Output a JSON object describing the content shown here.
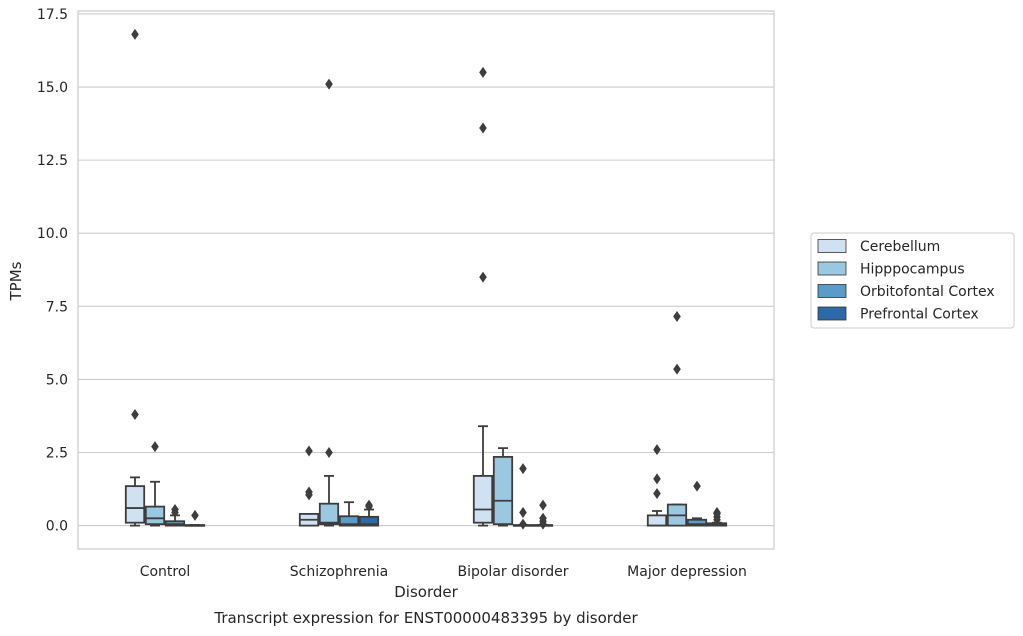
{
  "chart_data": {
    "type": "box",
    "xlabel": "Disorder",
    "ylabel": "TPMs",
    "caption": "Transcript expression for ENST00000483395 by disorder",
    "ylim": [
      -0.8,
      17.6
    ],
    "yticks": [
      "0.0",
      "2.5",
      "5.0",
      "7.5",
      "10.0",
      "12.5",
      "15.0",
      "17.5"
    ],
    "grid": "horizontal",
    "legend_position": "right",
    "categories": [
      "Control",
      "Schizophrenia",
      "Bipolar disorder",
      "Major depression"
    ],
    "series": [
      {
        "name": "Cerebellum",
        "color": "#d0e1f2",
        "boxes": [
          {
            "whislo": 0.0,
            "q1": 0.1,
            "med": 0.6,
            "q3": 1.35,
            "whishi": 1.65,
            "fliers": [
              3.8,
              16.8
            ]
          },
          {
            "whislo": 0.0,
            "q1": 0.0,
            "med": 0.2,
            "q3": 0.4,
            "whishi": 0.4,
            "fliers": [
              1.05,
              1.15,
              2.55
            ]
          },
          {
            "whislo": 0.0,
            "q1": 0.1,
            "med": 0.55,
            "q3": 1.7,
            "whishi": 3.4,
            "fliers": [
              8.5,
              13.6,
              15.5
            ]
          },
          {
            "whislo": 0.0,
            "q1": 0.0,
            "med": 0.0,
            "q3": 0.35,
            "whishi": 0.5,
            "fliers": [
              1.1,
              1.6,
              2.6
            ]
          }
        ]
      },
      {
        "name": "Hipppocampus",
        "color": "#9ac8e0",
        "boxes": [
          {
            "whislo": 0.0,
            "q1": 0.05,
            "med": 0.25,
            "q3": 0.65,
            "whishi": 1.5,
            "fliers": [
              2.7
            ]
          },
          {
            "whislo": 0.0,
            "q1": 0.05,
            "med": 0.1,
            "q3": 0.75,
            "whishi": 1.7,
            "fliers": [
              2.5,
              15.1
            ]
          },
          {
            "whislo": 0.0,
            "q1": 0.05,
            "med": 0.85,
            "q3": 2.35,
            "whishi": 2.65,
            "fliers": []
          },
          {
            "whislo": 0.0,
            "q1": 0.0,
            "med": 0.35,
            "q3": 0.72,
            "whishi": 0.72,
            "fliers": [
              5.35,
              7.15
            ]
          }
        ]
      },
      {
        "name": "Orbitofontal Cortex",
        "color": "#5a9bc8",
        "boxes": [
          {
            "whislo": 0.0,
            "q1": 0.0,
            "med": 0.05,
            "q3": 0.15,
            "whishi": 0.35,
            "fliers": [
              0.45,
              0.55
            ]
          },
          {
            "whislo": 0.0,
            "q1": 0.0,
            "med": 0.05,
            "q3": 0.32,
            "whishi": 0.8,
            "fliers": []
          },
          {
            "whislo": 0.0,
            "q1": 0.0,
            "med": 0.0,
            "q3": 0.02,
            "whishi": 0.02,
            "fliers": [
              0.05,
              0.45,
              1.95
            ]
          },
          {
            "whislo": 0.0,
            "q1": 0.0,
            "med": 0.05,
            "q3": 0.2,
            "whishi": 0.25,
            "fliers": [
              1.35
            ]
          }
        ]
      },
      {
        "name": "Prefrontal Cortex",
        "color": "#2b6aa6",
        "boxes": [
          {
            "whislo": 0.0,
            "q1": 0.0,
            "med": 0.0,
            "q3": 0.02,
            "whishi": 0.02,
            "fliers": [
              0.35
            ]
          },
          {
            "whislo": 0.0,
            "q1": 0.0,
            "med": 0.05,
            "q3": 0.3,
            "whishi": 0.55,
            "fliers": [
              0.65,
              0.7
            ]
          },
          {
            "whislo": 0.0,
            "q1": 0.0,
            "med": 0.0,
            "q3": 0.02,
            "whishi": 0.02,
            "fliers": [
              0.05,
              0.15,
              0.25,
              0.7
            ]
          },
          {
            "whislo": 0.0,
            "q1": 0.0,
            "med": 0.02,
            "q3": 0.08,
            "whishi": 0.1,
            "fliers": [
              0.2,
              0.3,
              0.4,
              0.45
            ]
          }
        ]
      }
    ]
  }
}
